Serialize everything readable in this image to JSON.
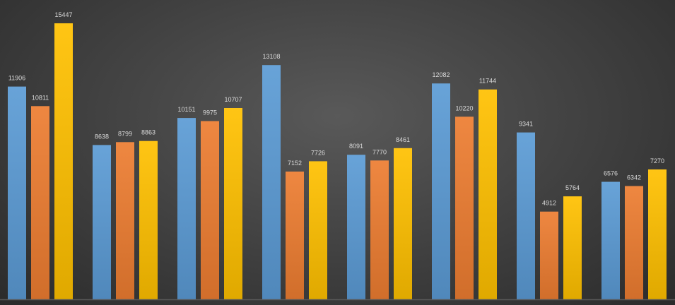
{
  "chart_data": {
    "type": "bar",
    "title": "",
    "xlabel": "",
    "ylabel": "",
    "ylim": [
      0,
      16000
    ],
    "grid": false,
    "legend": "none",
    "data_labels": true,
    "categories": [
      "",
      "",
      "",
      "",
      "",
      "",
      "",
      ""
    ],
    "series": [
      {
        "color": "#5b9bd5",
        "values": [
          11906,
          8638,
          10151,
          13108,
          8091,
          12082,
          9341,
          6576
        ]
      },
      {
        "color": "#ed7d31",
        "values": [
          10811,
          8799,
          9975,
          7152,
          7770,
          10220,
          4912,
          6342
        ]
      },
      {
        "color": "#ffc000",
        "values": [
          15447,
          8863,
          10707,
          7726,
          8461,
          11744,
          5764,
          7270
        ]
      }
    ]
  },
  "colors": {
    "background": "#444444",
    "axis": "#595959",
    "label": "#d9d9d9"
  }
}
